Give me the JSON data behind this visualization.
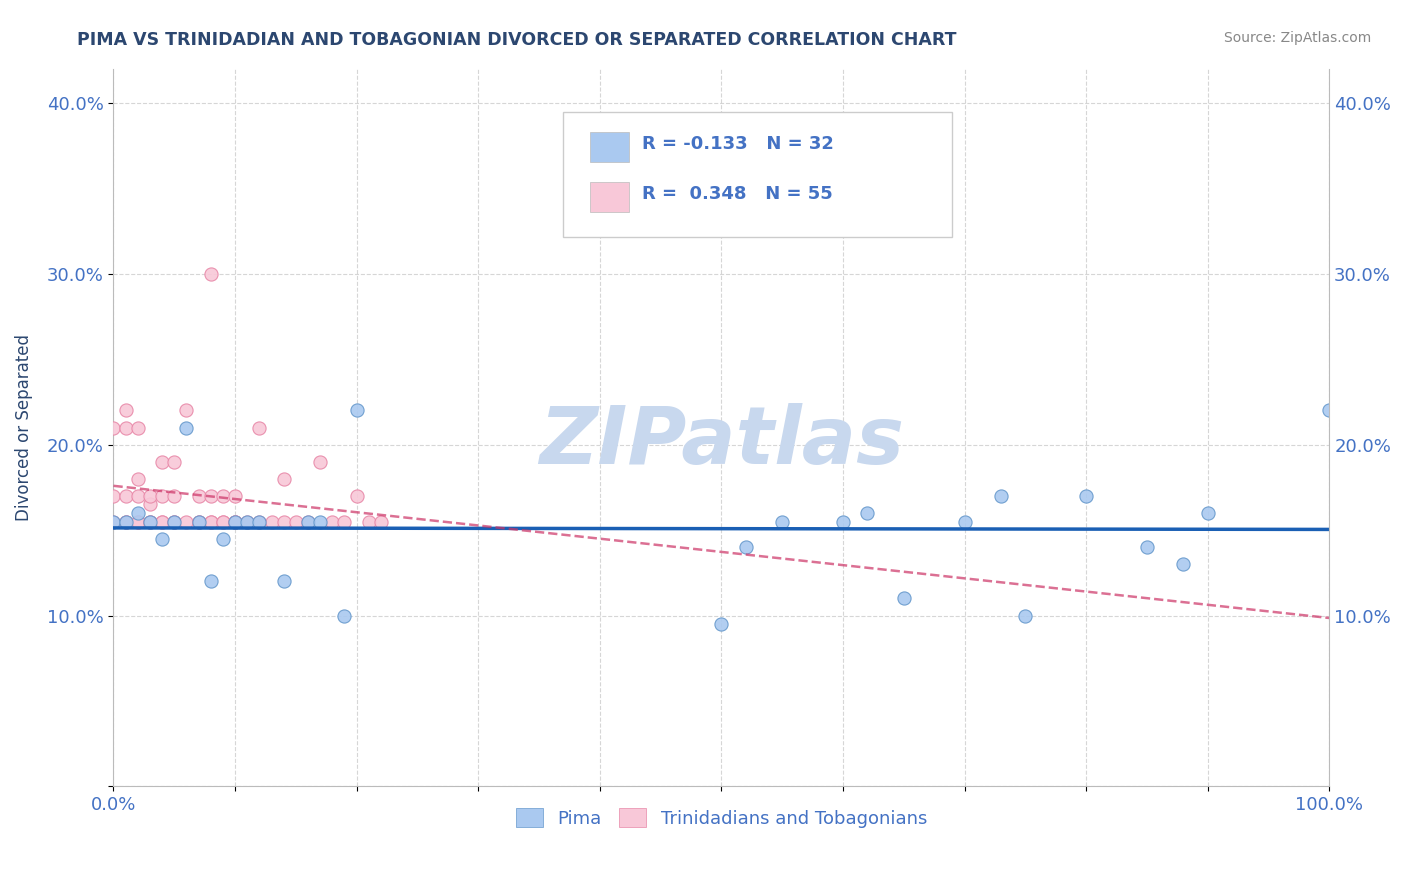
{
  "title": "PIMA VS TRINIDADIAN AND TOBAGONIAN DIVORCED OR SEPARATED CORRELATION CHART",
  "source_text": "Source: ZipAtlas.com",
  "ylabel": "Divorced or Separated",
  "legend_bottom": [
    "Pima",
    "Trinidadians and Tobagonians"
  ],
  "series": [
    {
      "name": "Pima",
      "color": "#aac9f0",
      "border_color": "#6699cc",
      "R": -0.133,
      "N": 32,
      "x": [
        0.0,
        0.01,
        0.02,
        0.03,
        0.04,
        0.05,
        0.06,
        0.07,
        0.08,
        0.09,
        0.1,
        0.11,
        0.12,
        0.14,
        0.16,
        0.17,
        0.19,
        0.2,
        0.5,
        0.52,
        0.55,
        0.6,
        0.62,
        0.65,
        0.7,
        0.73,
        0.75,
        0.8,
        0.85,
        0.88,
        0.9,
        1.0
      ],
      "y": [
        0.155,
        0.155,
        0.16,
        0.155,
        0.145,
        0.155,
        0.21,
        0.155,
        0.12,
        0.145,
        0.155,
        0.155,
        0.155,
        0.12,
        0.155,
        0.155,
        0.1,
        0.22,
        0.095,
        0.14,
        0.155,
        0.155,
        0.16,
        0.11,
        0.155,
        0.17,
        0.1,
        0.17,
        0.14,
        0.13,
        0.16,
        0.22
      ]
    },
    {
      "name": "Trinidadians and Tobagonians",
      "color": "#f8c8d8",
      "border_color": "#e888a8",
      "R": 0.348,
      "N": 55,
      "x": [
        0.0,
        0.0,
        0.0,
        0.01,
        0.01,
        0.01,
        0.01,
        0.01,
        0.02,
        0.02,
        0.02,
        0.02,
        0.02,
        0.03,
        0.03,
        0.03,
        0.03,
        0.04,
        0.04,
        0.04,
        0.04,
        0.05,
        0.05,
        0.05,
        0.05,
        0.06,
        0.06,
        0.07,
        0.07,
        0.07,
        0.08,
        0.08,
        0.08,
        0.08,
        0.09,
        0.09,
        0.09,
        0.1,
        0.1,
        0.1,
        0.1,
        0.11,
        0.12,
        0.12,
        0.13,
        0.14,
        0.14,
        0.15,
        0.16,
        0.17,
        0.18,
        0.19,
        0.2,
        0.21,
        0.22
      ],
      "y": [
        0.155,
        0.17,
        0.21,
        0.155,
        0.17,
        0.21,
        0.22,
        0.155,
        0.155,
        0.17,
        0.18,
        0.155,
        0.21,
        0.155,
        0.165,
        0.17,
        0.155,
        0.155,
        0.17,
        0.155,
        0.19,
        0.155,
        0.17,
        0.19,
        0.155,
        0.155,
        0.22,
        0.155,
        0.17,
        0.155,
        0.155,
        0.17,
        0.155,
        0.3,
        0.155,
        0.17,
        0.155,
        0.155,
        0.155,
        0.17,
        0.155,
        0.155,
        0.155,
        0.21,
        0.155,
        0.155,
        0.18,
        0.155,
        0.155,
        0.19,
        0.155,
        0.155,
        0.17,
        0.155,
        0.155
      ]
    }
  ],
  "xlim": [
    0.0,
    1.0
  ],
  "ylim": [
    0.0,
    0.42
  ],
  "xtick_positions": [
    0.0,
    0.1,
    0.2,
    0.3,
    0.4,
    0.5,
    0.6,
    0.7,
    0.8,
    0.9,
    1.0
  ],
  "xtick_labels": [
    "0.0%",
    "",
    "",
    "",
    "",
    "",
    "",
    "",
    "",
    "",
    "100.0%"
  ],
  "ytick_positions": [
    0.0,
    0.1,
    0.2,
    0.3,
    0.4
  ],
  "ytick_labels": [
    "",
    "10.0%",
    "20.0%",
    "30.0%",
    "40.0%"
  ],
  "grid_color": "#cccccc",
  "background_color": "#ffffff",
  "watermark_text": "ZIPatlas",
  "watermark_color": "#c8d8ee",
  "title_color": "#2c4770",
  "axis_label_color": "#2c4770",
  "tick_label_color": "#4472c4",
  "source_color": "#888888",
  "legend_box_blue": "#aac9f0",
  "legend_box_pink": "#f8c8d8",
  "pima_line_color": "#1a5fb4",
  "tt_line_color": "#cc3366",
  "pima_R": -0.133,
  "pima_N": 32,
  "tt_R": 0.348,
  "tt_N": 55
}
